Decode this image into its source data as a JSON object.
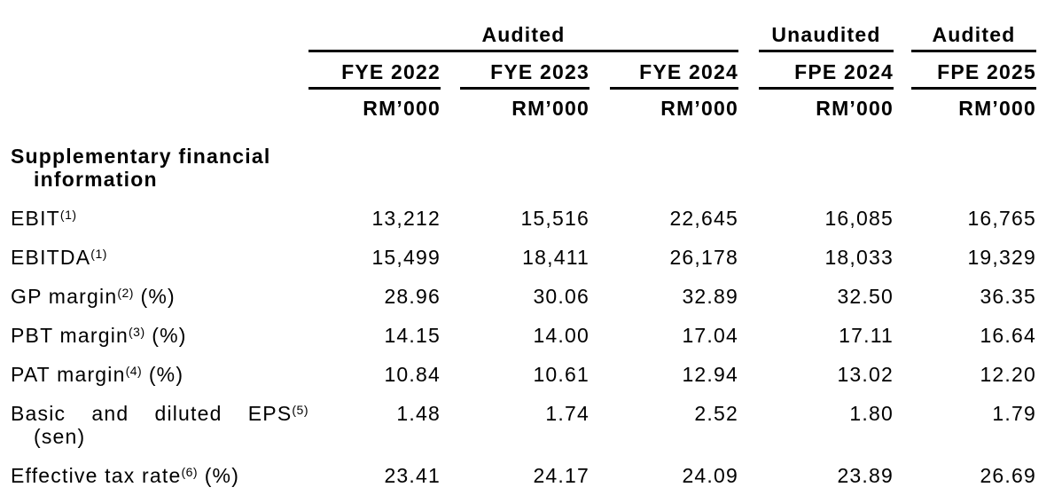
{
  "document": {
    "header": {
      "groups": [
        "Audited",
        "Unaudited",
        "Audited"
      ],
      "periods": [
        "FYE 2022",
        "FYE 2023",
        "FYE 2024",
        "FPE 2024",
        "FPE 2025"
      ],
      "units": [
        "RM’000",
        "RM’000",
        "RM’000",
        "RM’000",
        "RM’000"
      ]
    },
    "section_title": "Supplementary financial information",
    "rows": [
      {
        "label": "EBIT",
        "footnote": "(1)",
        "suffix": "",
        "values": [
          "13,212",
          "15,516",
          "22,645",
          "16,085",
          "16,765"
        ]
      },
      {
        "label": "EBITDA",
        "footnote": "(1)",
        "suffix": "",
        "values": [
          "15,499",
          "18,411",
          "26,178",
          "18,033",
          "19,329"
        ]
      },
      {
        "label": "GP margin",
        "footnote": "(2)",
        "suffix": " (%)",
        "values": [
          "28.96",
          "30.06",
          "32.89",
          "32.50",
          "36.35"
        ]
      },
      {
        "label": "PBT margin",
        "footnote": "(3)",
        "suffix": " (%)",
        "values": [
          "14.15",
          "14.00",
          "17.04",
          "17.11",
          "16.64"
        ]
      },
      {
        "label": "PAT margin",
        "footnote": "(4)",
        "suffix": " (%)",
        "values": [
          "10.84",
          "10.61",
          "12.94",
          "13.02",
          "12.20"
        ]
      },
      {
        "label": "Basic and diluted EPS",
        "footnote": "(5)",
        "suffix": " (sen)",
        "values": [
          "1.48",
          "1.74",
          "2.52",
          "1.80",
          "1.79"
        ]
      },
      {
        "label": "Effective tax rate",
        "footnote": "(6)",
        "suffix": " (%)",
        "values": [
          "23.41",
          "24.17",
          "24.09",
          "23.89",
          "26.69"
        ]
      }
    ]
  }
}
